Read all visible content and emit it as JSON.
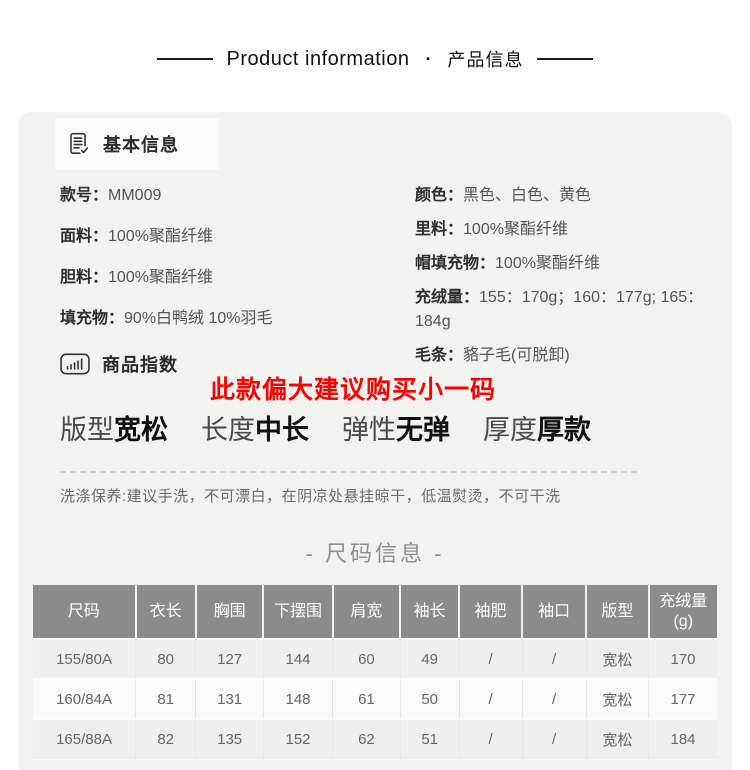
{
  "header": {
    "title_en": "Product information",
    "separator": "·",
    "title_zh": "产品信息"
  },
  "basic_info": {
    "section_title": "基本信息",
    "left_items": [
      {
        "label": "款号：",
        "value": "MM009"
      },
      {
        "label": "面料：",
        "value": "100%聚酯纤维"
      },
      {
        "label": "胆料：",
        "value": "100%聚酯纤维"
      },
      {
        "label": "填充物：",
        "value": "90%白鸭绒 10%羽毛"
      }
    ],
    "right_items": [
      {
        "label": "颜色：",
        "value": "黑色、白色、黄色"
      },
      {
        "label": "里料：",
        "value": "100%聚酯纤维"
      },
      {
        "label": "帽填充物：",
        "value": "100%聚酯纤维"
      },
      {
        "label": "充绒量：",
        "value": "155：170g；160：177g; 165：184g"
      },
      {
        "label": "毛条：",
        "value": "貉子毛(可脱卸)"
      }
    ]
  },
  "product_index": {
    "section_title": "商品指数",
    "warning_text": "此款偏大建议购买小一码",
    "warning_color": "#fe0000",
    "indexes": [
      {
        "label": "版型",
        "value": "宽松"
      },
      {
        "label": "长度",
        "value": "中长"
      },
      {
        "label": "弹性",
        "value": "无弹"
      },
      {
        "label": "厚度",
        "value": "厚款"
      }
    ],
    "care_text": "洗涤保养:建议手洗，不可漂白，在阴凉处悬挂晾干，低温熨烫，不可干洗"
  },
  "size_info": {
    "section_title": "- 尺码信息 -",
    "table": {
      "headers": [
        "尺码",
        "衣长",
        "胸围",
        "下摆围",
        "肩宽",
        "袖长",
        "袖肥",
        "袖口",
        "版型",
        "充绒量(g)"
      ],
      "rows": [
        [
          "155/80A",
          "80",
          "127",
          "144",
          "60",
          "49",
          "/",
          "/",
          "宽松",
          "170"
        ],
        [
          "160/84A",
          "81",
          "131",
          "148",
          "61",
          "50",
          "/",
          "/",
          "宽松",
          "177"
        ],
        [
          "165/88A",
          "82",
          "135",
          "152",
          "62",
          "51",
          "/",
          "/",
          "宽松",
          "184"
        ]
      ]
    }
  },
  "colors": {
    "accent_red": "#fe0000",
    "table_header_bg": "#8b8b89",
    "panel_bg": "#f2f2f0"
  }
}
